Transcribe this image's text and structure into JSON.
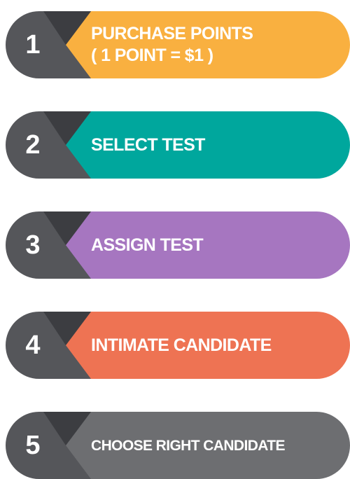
{
  "colors": {
    "badge_dark": "#55565a",
    "badge_shadow": "#3c3d41",
    "step_1": "#f9b040",
    "step_2": "#00a79d",
    "step_3": "#a676c0",
    "step_4": "#ee7353",
    "step_5": "#6d6e71"
  },
  "steps": [
    {
      "number": "1",
      "line1": "PURCHASE POINTS",
      "line2": "( 1 POINT = $1 )"
    },
    {
      "number": "2",
      "line1": "SELECT TEST",
      "line2": ""
    },
    {
      "number": "3",
      "line1": "ASSIGN TEST",
      "line2": ""
    },
    {
      "number": "4",
      "line1": "INTIMATE CANDIDATE",
      "line2": ""
    },
    {
      "number": "5",
      "line1": "CHOOSE RIGHT CANDIDATE",
      "line2": ""
    }
  ]
}
